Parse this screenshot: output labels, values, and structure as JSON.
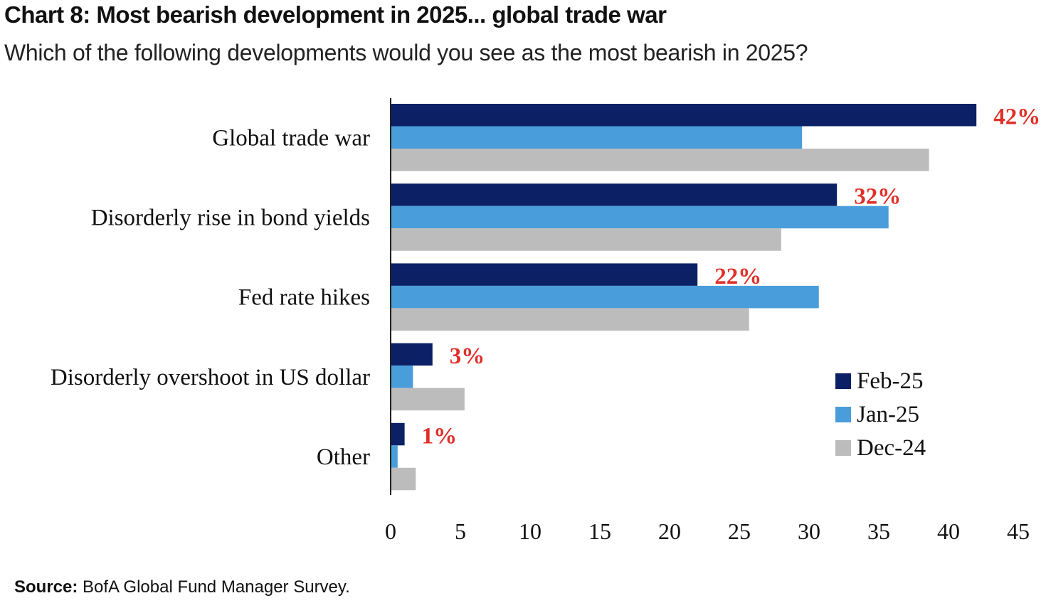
{
  "header": {
    "title": "Chart 8: Most bearish development in 2025... global trade war",
    "subtitle": "Which of the following developments would you see as the most bearish in 2025?"
  },
  "footer": {
    "source_label": "Source:",
    "source_text": "BofA Global Fund Manager Survey."
  },
  "chart_data": {
    "type": "bar",
    "orientation": "horizontal",
    "categories": [
      "Global trade war",
      "Disorderly rise in bond yields",
      "Fed rate hikes",
      "Disorderly overshoot in US dollar",
      "Other"
    ],
    "series": [
      {
        "name": "Feb-25",
        "color": "#0b2065",
        "values": [
          42,
          32,
          22,
          3,
          1
        ]
      },
      {
        "name": "Jan-25",
        "color": "#4a9ddb",
        "values": [
          29.5,
          35.7,
          30.7,
          1.6,
          0.5
        ]
      },
      {
        "name": "Dec-24",
        "color": "#bcbcbc",
        "values": [
          38.6,
          28,
          25.7,
          5.3,
          1.8
        ]
      }
    ],
    "data_labels": [
      "42%",
      "32%",
      "22%",
      "3%",
      "1%"
    ],
    "data_label_color": "#e0302a",
    "xlim": [
      0,
      45
    ],
    "x_ticks": [
      0,
      5,
      10,
      15,
      20,
      25,
      30,
      35,
      40,
      45
    ],
    "grid": false,
    "legend_position": "bottom-right"
  }
}
